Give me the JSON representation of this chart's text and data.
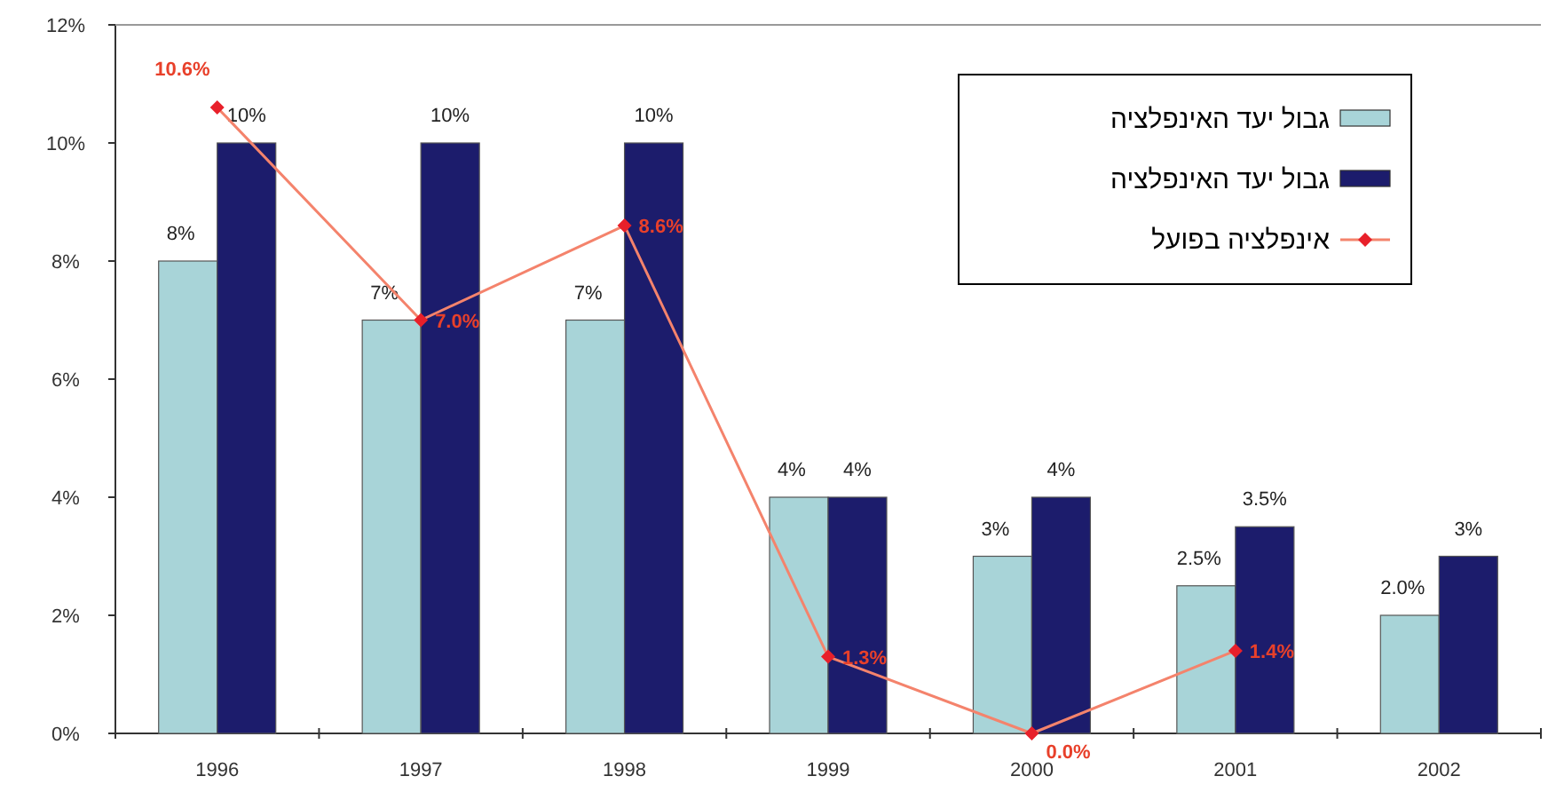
{
  "chart_data": {
    "type": "bar",
    "categories": [
      "1996",
      "1997",
      "1998",
      "1999",
      "2000",
      "2001",
      "2002"
    ],
    "ylim": [
      0,
      12
    ],
    "yticks": [
      {
        "value": 0,
        "label": "0%"
      },
      {
        "value": 2,
        "label": "2%"
      },
      {
        "value": 4,
        "label": "4%"
      },
      {
        "value": 6,
        "label": "6%"
      },
      {
        "value": 8,
        "label": "8%"
      },
      {
        "value": 10,
        "label": "10%"
      },
      {
        "value": 12,
        "label": "12%"
      }
    ],
    "legend": "top right",
    "grid": false,
    "marker": "diamond",
    "series": [
      {
        "name": "גבול יעד האינפלציה",
        "color": "#a8d4d8",
        "values": [
          8,
          7,
          7,
          4,
          3,
          2.5,
          2.0
        ],
        "value_labels": [
          "8%",
          "7%",
          "7%",
          "4%",
          "3%",
          "2.5%",
          "2.0%"
        ]
      },
      {
        "name": "גבול יעד האינפלציה",
        "color": "#1c1c6c",
        "values": [
          10,
          10,
          10,
          4,
          4,
          3.5,
          3
        ],
        "value_labels": [
          "10%",
          "10%",
          "10%",
          "4%",
          "4%",
          "3.5%",
          "3%"
        ]
      },
      {
        "name": "אינפלציה בפועל",
        "type": "line",
        "color": "#f4836c",
        "values": [
          10.6,
          7.0,
          8.6,
          1.3,
          0.0,
          1.4,
          null
        ],
        "value_labels": [
          "10.6%",
          "7.0%",
          "8.6%",
          "1.3%",
          "0.0%",
          "1.4%",
          null
        ]
      }
    ]
  }
}
